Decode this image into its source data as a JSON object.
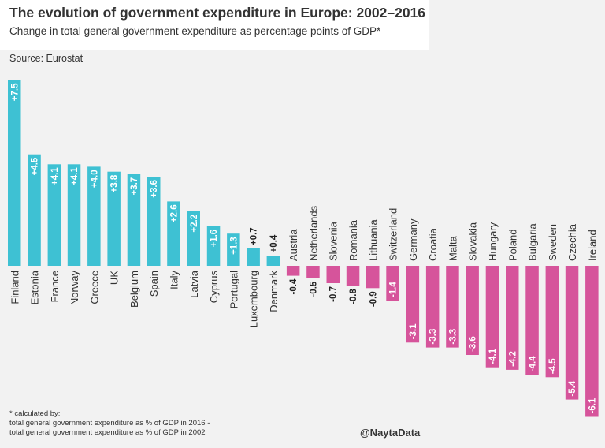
{
  "chart_data": {
    "type": "bar",
    "title": "The evolution of government expenditure in Europe: 2002–2016",
    "subtitle": "Change in total general government expenditure as percentage points of GDP*",
    "source": "Source: Eurostat",
    "categories": [
      "Finland",
      "Estonia",
      "France",
      "Norway",
      "Greece",
      "UK",
      "Belgium",
      "Spain",
      "Italy",
      "Latvia",
      "Cyprus",
      "Portugal",
      "Luxembourg",
      "Denmark",
      "Austria",
      "Netherlands",
      "Slovenia",
      "Romania",
      "Lithuania",
      "Switzerland",
      "Germany",
      "Croatia",
      "Malta",
      "Slovakia",
      "Hungary",
      "Poland",
      "Bulgaria",
      "Sweden",
      "Czechia",
      "Ireland"
    ],
    "values": [
      7.5,
      4.5,
      4.1,
      4.1,
      4.0,
      3.8,
      3.7,
      3.6,
      2.6,
      2.2,
      1.6,
      1.3,
      0.7,
      0.4,
      -0.4,
      -0.5,
      -0.7,
      -0.8,
      -0.9,
      -1.4,
      -3.1,
      -3.3,
      -3.3,
      -3.6,
      -4.1,
      -4.2,
      -4.4,
      -4.5,
      -5.4,
      -6.1
    ],
    "value_labels": [
      "+7.5",
      "+4.5",
      "+4.1",
      "+4.1",
      "+4.0",
      "+3.8",
      "+3.7",
      "+3.6",
      "+2.6",
      "+2.2",
      "+1.6",
      "+1.3",
      "+0.7",
      "+0.4",
      "-0.4",
      "-0.5",
      "-0.7",
      "-0.8",
      "-0.9",
      "-1.4",
      "-3.1",
      "-3.3",
      "-3.3",
      "-3.6",
      "-4.1",
      "-4.2",
      "-4.4",
      "-4.5",
      "-5.4",
      "-6.1"
    ],
    "colors": {
      "positive": "#3ec1d3",
      "negative": "#d6549b",
      "label_dark": "#222222",
      "label_light": "#ffffff",
      "text": "#333333"
    },
    "grid": false,
    "legend": "none"
  },
  "footnote": {
    "lines": [
      "* calculated by:",
      "total general government expenditure as % of GDP in 2016 -",
      "total general government expenditure as % of GDP in 2002"
    ]
  },
  "credit": "@NaytaData"
}
